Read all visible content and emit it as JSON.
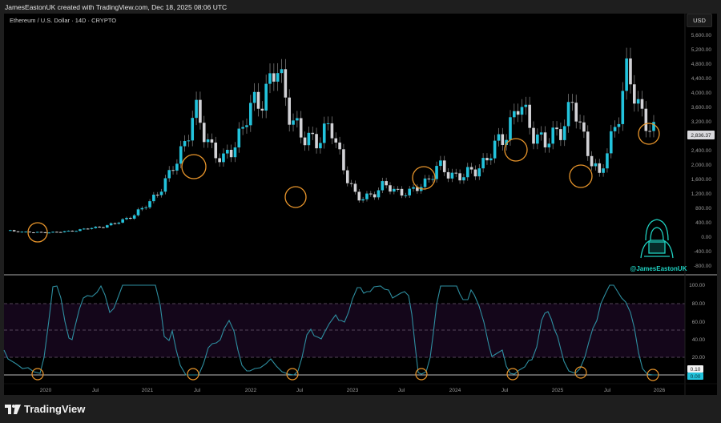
{
  "header": {
    "attribution": "JamesEastonUK created with TradingView.com, Dec 18, 2025 08:06 UTC",
    "symbol": "Ethereum / U.S. Dollar · 14D · CRYPTO",
    "currency_button": "USD"
  },
  "watermark": {
    "handle": "@JamesEastonUK"
  },
  "footer": {
    "brand": "TradingView"
  },
  "colors": {
    "up": "#22c3dc",
    "down": "#d2d2d6",
    "oscillator_line": "#2e8ea0",
    "highlight_circle": "#e8952b",
    "band_fill": "#14061a",
    "background": "#000000"
  },
  "chart_data": [
    {
      "type": "candlestick",
      "title": "Ethereum / U.S. Dollar · 14D · CRYPTO",
      "xlabel": "",
      "ylabel": "USD",
      "x_ticks": [
        "2020",
        "Jul",
        "2021",
        "Jul",
        "2022",
        "Jul",
        "2023",
        "Jul",
        "2024",
        "Jul",
        "2025",
        "Jul",
        "2026"
      ],
      "y_ticks": [
        5600,
        5200,
        4800,
        4400,
        4000,
        3600,
        3200,
        2400,
        2000,
        1600,
        1200,
        800,
        400,
        0,
        -400,
        -800
      ],
      "ylim": [
        -900,
        5800
      ],
      "last_price": "2,836.37",
      "approx_close_path": [
        {
          "date": "2019-09",
          "close": 180
        },
        {
          "date": "2019-12",
          "close": 130
        },
        {
          "date": "2020-03",
          "close": 140
        },
        {
          "date": "2020-06",
          "close": 230
        },
        {
          "date": "2020-09",
          "close": 360
        },
        {
          "date": "2020-12",
          "close": 730
        },
        {
          "date": "2021-02",
          "close": 1600
        },
        {
          "date": "2021-05",
          "close": 3400
        },
        {
          "date": "2021-07",
          "close": 2000
        },
        {
          "date": "2021-09",
          "close": 3400
        },
        {
          "date": "2021-11",
          "close": 4600
        },
        {
          "date": "2022-01",
          "close": 2600
        },
        {
          "date": "2022-04",
          "close": 3000
        },
        {
          "date": "2022-06",
          "close": 1000
        },
        {
          "date": "2022-09",
          "close": 1400
        },
        {
          "date": "2022-12",
          "close": 1200
        },
        {
          "date": "2023-04",
          "close": 1900
        },
        {
          "date": "2023-08",
          "close": 1650
        },
        {
          "date": "2023-12",
          "close": 2300
        },
        {
          "date": "2024-03",
          "close": 3600
        },
        {
          "date": "2024-08",
          "close": 2500
        },
        {
          "date": "2024-12",
          "close": 3600
        },
        {
          "date": "2025-04",
          "close": 1600
        },
        {
          "date": "2025-08",
          "close": 4400
        },
        {
          "date": "2025-12",
          "close": 2836
        }
      ],
      "annotations": [
        "orange circles marking local lows: ~Dec 2019, Jul 2021, Jun 2022, Aug 2023, Aug 2024, Apr 2025, Dec 2025"
      ]
    },
    {
      "type": "line",
      "title": "Oscillator (0–100)",
      "y_ticks": [
        100,
        80,
        60,
        40,
        20
      ],
      "ylim": [
        0,
        100
      ],
      "bands": {
        "upper": 80,
        "middle": 50,
        "lower": 20
      },
      "current_values": [
        "0.10",
        "0.00"
      ],
      "annotations": [
        "orange circles at oscillator lows near 0: ~Dec 2019, Jul 2021, Jun 2022, Aug 2023, Aug 2024, Apr 2025, Dec 2025"
      ]
    }
  ],
  "axis": {
    "price_ticks": [
      "5,600.00",
      "5,200.00",
      "4,800.00",
      "4,400.00",
      "4,000.00",
      "3,600.00",
      "3,200.00",
      "2,400.00",
      "2,000.00",
      "1,600.00",
      "1,200.00",
      "800.00",
      "400.00",
      "0.00",
      "-400.00",
      "-800.00"
    ],
    "osc_ticks": [
      "100.00",
      "80.00",
      "60.00",
      "40.00",
      "20.00"
    ],
    "time_ticks": [
      "2020",
      "Jul",
      "2021",
      "Jul",
      "2022",
      "Jul",
      "2023",
      "Jul",
      "2024",
      "Jul",
      "2025",
      "Jul",
      "2026"
    ],
    "price_tag": "2,836.37",
    "osc_tag_1": "0.10",
    "osc_tag_2": "0.00"
  }
}
